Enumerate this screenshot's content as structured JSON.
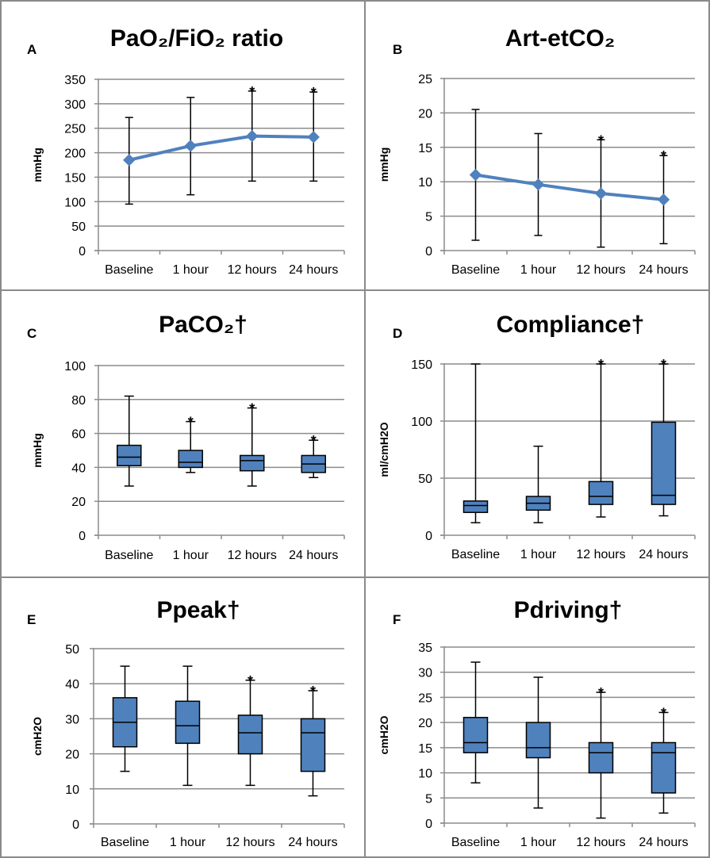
{
  "chart_data": [
    {
      "id": "A",
      "type": "line",
      "title": "PaO₂/FiO₂ ratio",
      "ylabel": "mmHg",
      "xlabel": "",
      "categories": [
        "Baseline",
        "1 hour",
        "12 hours",
        "24 hours"
      ],
      "ylim": [
        0,
        350
      ],
      "yticks": [
        0,
        50,
        100,
        150,
        200,
        250,
        300,
        350
      ],
      "series": [
        {
          "values": [
            185,
            214,
            234,
            232
          ]
        }
      ],
      "error_bars": [
        {
          "low": 95,
          "high": 272
        },
        {
          "low": 114,
          "high": 313
        },
        {
          "low": 142,
          "high": 326
        },
        {
          "low": 142,
          "high": 324
        }
      ],
      "significant": [
        false,
        false,
        true,
        true
      ],
      "sig_marker": "*",
      "grid": true,
      "color": "#4f81bd"
    },
    {
      "id": "B",
      "type": "line",
      "title": "Art-etCO₂",
      "ylabel": "mmHg",
      "xlabel": "",
      "categories": [
        "Baseline",
        "1 hour",
        "12 hours",
        "24 hours"
      ],
      "ylim": [
        0,
        25
      ],
      "yticks": [
        0,
        5,
        10,
        15,
        20,
        25
      ],
      "series": [
        {
          "values": [
            11,
            9.6,
            8.3,
            7.4
          ]
        }
      ],
      "error_bars": [
        {
          "low": 1.5,
          "high": 20.5
        },
        {
          "low": 2.2,
          "high": 17
        },
        {
          "low": 0.5,
          "high": 16.1
        },
        {
          "low": 1,
          "high": 13.8
        }
      ],
      "significant": [
        false,
        false,
        true,
        true
      ],
      "sig_marker": "*",
      "grid": true,
      "color": "#4f81bd"
    },
    {
      "id": "C",
      "type": "box",
      "title": "PaCO₂†",
      "ylabel": "mmHg",
      "xlabel": "",
      "categories": [
        "Baseline",
        "1 hour",
        "12 hours",
        "24 hours"
      ],
      "ylim": [
        0,
        100
      ],
      "yticks": [
        0,
        20,
        40,
        60,
        80,
        100
      ],
      "boxes": [
        {
          "min": 29,
          "q1": 41,
          "median": 46,
          "q3": 53,
          "max": 82
        },
        {
          "min": 37,
          "q1": 40,
          "median": 43,
          "q3": 50,
          "max": 67
        },
        {
          "min": 29,
          "q1": 38,
          "median": 44,
          "q3": 47,
          "max": 75
        },
        {
          "min": 34,
          "q1": 37,
          "median": 42,
          "q3": 47,
          "max": 56
        }
      ],
      "significant": [
        false,
        true,
        true,
        true
      ],
      "sig_marker": "*",
      "grid": true,
      "color": "#4f81bd"
    },
    {
      "id": "D",
      "type": "box",
      "title": "Compliance†",
      "ylabel": "ml/cmH2O",
      "xlabel": "",
      "categories": [
        "Baseline",
        "1 hour",
        "12 hours",
        "24 hours"
      ],
      "ylim": [
        0,
        150
      ],
      "yticks": [
        0,
        50,
        100,
        150
      ],
      "boxes": [
        {
          "min": 11,
          "q1": 20,
          "median": 26,
          "q3": 30,
          "max": 150
        },
        {
          "min": 11,
          "q1": 22,
          "median": 28,
          "q3": 34,
          "max": 78
        },
        {
          "min": 16,
          "q1": 27,
          "median": 34,
          "q3": 47,
          "max": 150
        },
        {
          "min": 17,
          "q1": 27,
          "median": 35,
          "q3": 99,
          "max": 150
        }
      ],
      "significant": [
        false,
        false,
        true,
        true
      ],
      "sig_marker": "*",
      "grid": true,
      "color": "#4f81bd"
    },
    {
      "id": "E",
      "type": "box",
      "title": "Ppeak†",
      "ylabel": "cmH2O",
      "xlabel": "",
      "categories": [
        "Baseline",
        "1 hour",
        "12 hours",
        "24 hours"
      ],
      "ylim": [
        0,
        50
      ],
      "yticks": [
        0,
        10,
        20,
        30,
        40,
        50
      ],
      "boxes": [
        {
          "min": 15,
          "q1": 22,
          "median": 29,
          "q3": 36,
          "max": 45
        },
        {
          "min": 11,
          "q1": 23,
          "median": 28,
          "q3": 35,
          "max": 45
        },
        {
          "min": 11,
          "q1": 20,
          "median": 26,
          "q3": 31,
          "max": 41
        },
        {
          "min": 8,
          "q1": 15,
          "median": 26,
          "q3": 30,
          "max": 38
        }
      ],
      "significant": [
        false,
        false,
        true,
        true
      ],
      "sig_marker": "*",
      "grid": true,
      "color": "#4f81bd"
    },
    {
      "id": "F",
      "type": "box",
      "title": "Pdriving†",
      "ylabel": "cmH2O",
      "xlabel": "",
      "categories": [
        "Baseline",
        "1 hour",
        "12 hours",
        "24 hours"
      ],
      "ylim": [
        0,
        35
      ],
      "yticks": [
        0,
        5,
        10,
        15,
        20,
        25,
        30,
        35
      ],
      "boxes": [
        {
          "min": 8,
          "q1": 14,
          "median": 16,
          "q3": 21,
          "max": 32
        },
        {
          "min": 3,
          "q1": 13,
          "median": 15,
          "q3": 20,
          "max": 29
        },
        {
          "min": 1,
          "q1": 10,
          "median": 14,
          "q3": 16,
          "max": 26
        },
        {
          "min": 2,
          "q1": 6,
          "median": 14,
          "q3": 16,
          "max": 22
        }
      ],
      "significant": [
        false,
        false,
        true,
        true
      ],
      "sig_marker": "*",
      "grid": true,
      "color": "#4f81bd"
    }
  ]
}
